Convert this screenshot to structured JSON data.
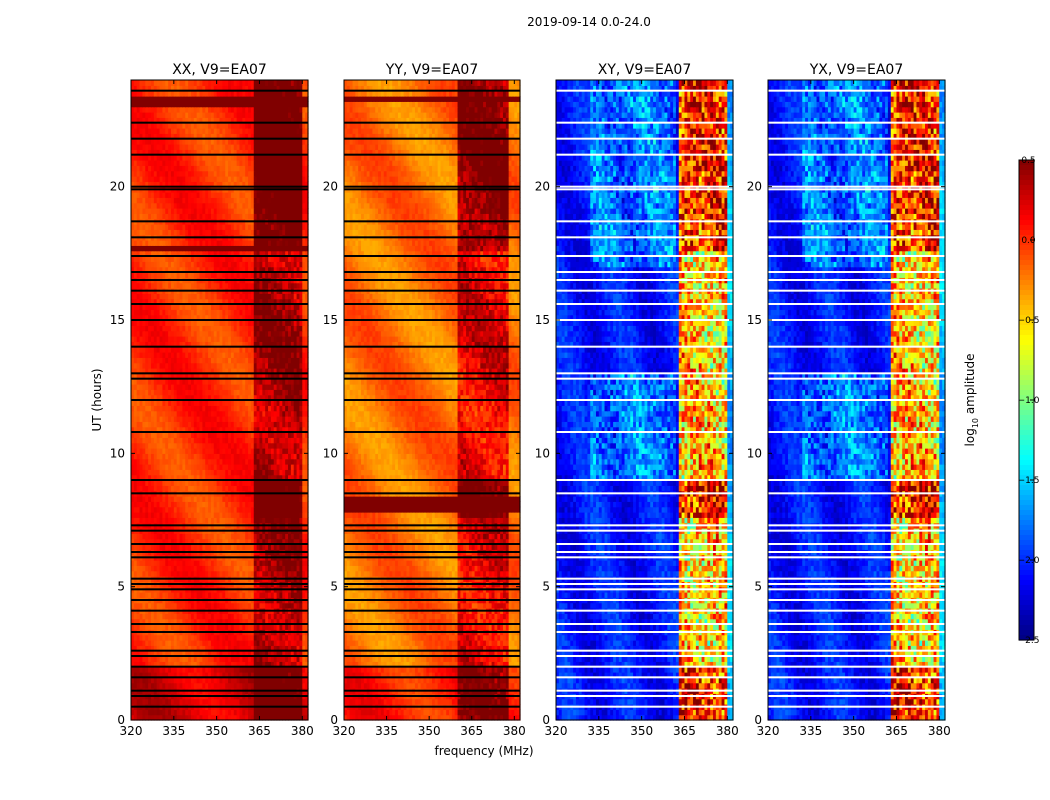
{
  "suptitle": "2019-09-14 0.0-24.0",
  "chart_data": {
    "type": "heatmap",
    "xlabel": "frequency (MHz)",
    "ylabel": "UT (hours)",
    "xlim": [
      320,
      382
    ],
    "ylim": [
      0,
      24
    ],
    "xticks": [
      320,
      335,
      350,
      365,
      380
    ],
    "xtick_labels": [
      "320",
      "335",
      "350",
      "365",
      "380"
    ],
    "yticks": [
      0,
      5,
      10,
      15,
      20
    ],
    "ytick_labels": [
      "0",
      "5",
      "10",
      "15",
      "20"
    ],
    "panels": [
      {
        "title": "XX, V9=EA07",
        "kind": "auto",
        "base": 0.0,
        "rfi_band": [
          363,
          380
        ],
        "dark_bands": [
          [
            23.1,
            23.4
          ],
          [
            17.6,
            17.8
          ]
        ]
      },
      {
        "title": "YY, V9=EA07",
        "kind": "auto",
        "base": -0.2,
        "rfi_band": [
          360,
          378
        ],
        "dark_bands": [
          [
            23.2,
            23.4
          ],
          [
            8.0,
            8.3
          ],
          [
            7.8,
            7.9
          ]
        ]
      },
      {
        "title": "XY, V9=EA07",
        "kind": "cross",
        "base": -2.2,
        "rfi_band": [
          363,
          380
        ],
        "dark_bands": [
          [
            7.6,
            7.7
          ]
        ]
      },
      {
        "title": "YX, V9=EA07",
        "kind": "cross",
        "base": -2.2,
        "rfi_band": [
          363,
          380
        ],
        "dark_bands": [
          [
            7.6,
            7.7
          ]
        ]
      }
    ],
    "gaps_hours": [
      0.5,
      0.9,
      1.1,
      1.6,
      2.0,
      2.4,
      2.6,
      3.3,
      3.6,
      4.1,
      4.5,
      4.9,
      5.1,
      5.3,
      6.1,
      6.3,
      6.6,
      7.1,
      7.3,
      8.5,
      9.0,
      10.8,
      12.0,
      12.8,
      13.0,
      14.0,
      15.0,
      15.6,
      16.1,
      16.5,
      16.8,
      17.4,
      18.1,
      18.7,
      19.9,
      20.0,
      21.2,
      21.8,
      22.4,
      23.6
    ],
    "colorbar": {
      "label_prefix": "log",
      "label_sub": "10",
      "label_suffix": " amplitude",
      "vmin": -2.5,
      "vmax": 0.5,
      "ticks": [
        0.5,
        0.0,
        -0.5,
        -1.0,
        -1.5,
        -2.0,
        -2.5
      ],
      "tick_labels": [
        "0.5",
        "0.0",
        "−0.5",
        "−1.0",
        "−1.5",
        "−2.0",
        "−2.5"
      ],
      "cmap": "jet"
    }
  }
}
